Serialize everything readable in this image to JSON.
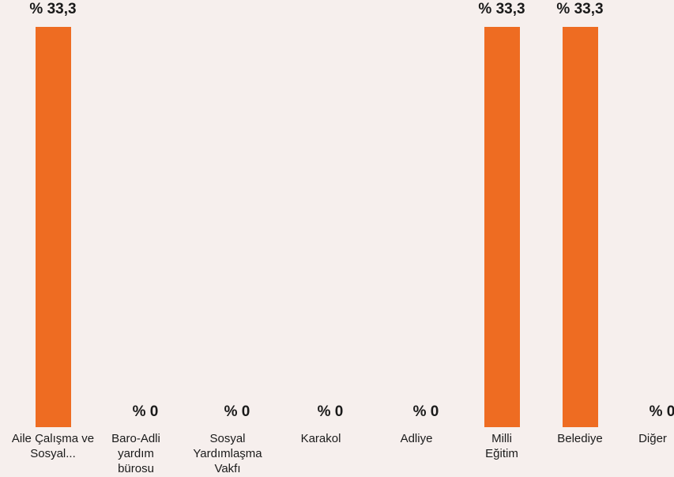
{
  "chart_data": {
    "type": "bar",
    "categories": [
      "Aile Çalışma ve Sosyal...",
      "Baro-Adli yardım bürosu",
      "Sosyal Yardımlaşma Vakfı",
      "Karakol",
      "Adliye",
      "Milli Eğitim",
      "Belediye",
      "Diğer"
    ],
    "values": [
      33.3,
      0,
      0,
      0,
      0,
      33.3,
      33.3,
      0
    ],
    "value_labels": [
      "% 33,3",
      "% 0",
      "% 0",
      "% 0",
      "% 0",
      "% 33,3",
      "% 33,3",
      "% 0"
    ],
    "color": "#ee6c22"
  }
}
